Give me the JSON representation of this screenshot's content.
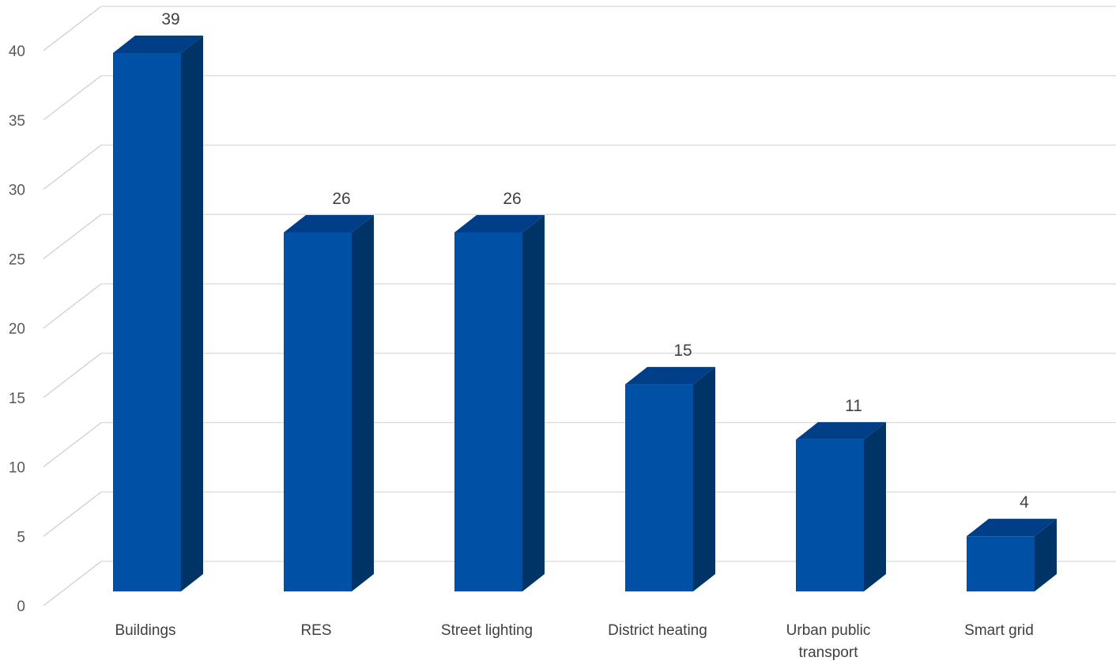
{
  "chart_data": {
    "type": "bar",
    "style": "3d-column",
    "categories": [
      "Buildings",
      "RES",
      "Street lighting",
      "District heating",
      "Urban public transport",
      "Smart grid"
    ],
    "category_lines": [
      [
        "Buildings"
      ],
      [
        "RES"
      ],
      [
        "Street lighting"
      ],
      [
        "District heating"
      ],
      [
        "Urban public",
        "transport"
      ],
      [
        "Smart grid"
      ]
    ],
    "values": [
      39,
      26,
      26,
      15,
      11,
      4
    ],
    "data_labels": [
      "39",
      "26",
      "26",
      "15",
      "11",
      "4"
    ],
    "ylim": [
      0,
      40
    ],
    "yticks": [
      0,
      5,
      10,
      15,
      20,
      25,
      30,
      35,
      40
    ],
    "ytick_labels": [
      "0",
      "5",
      "10",
      "15",
      "20",
      "25",
      "30",
      "35",
      "40"
    ],
    "grid": true,
    "title": "",
    "xlabel": "",
    "ylabel": "",
    "colors": {
      "bar_front": "#0050A6",
      "bar_side": "#003366",
      "bar_top": "#003F87",
      "grid": "#D9D9D9",
      "grid_wall": "#D0D0D0"
    }
  }
}
